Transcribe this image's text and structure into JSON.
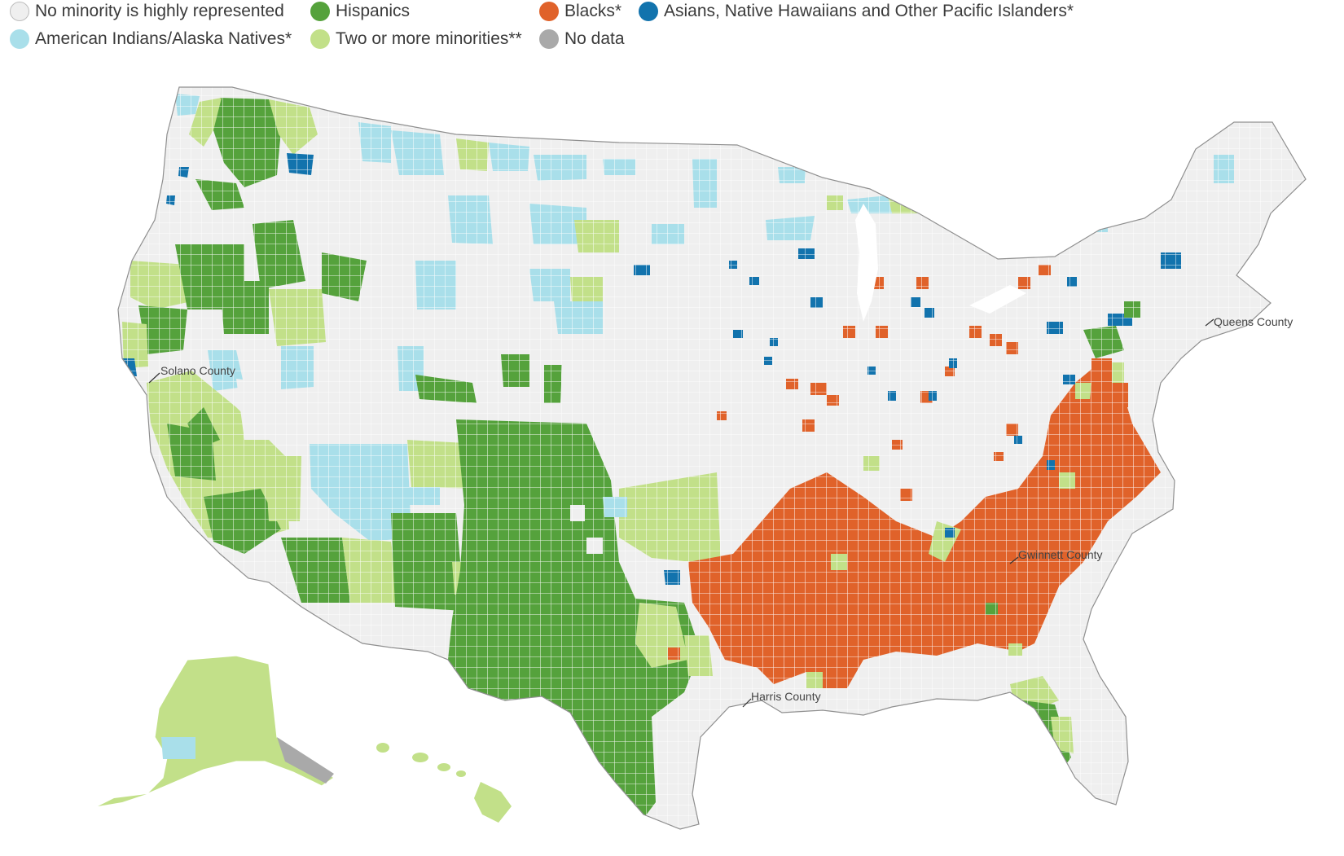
{
  "colors": {
    "none": "#efefef",
    "hispanic": "#55a23c",
    "black": "#e0622a",
    "asian": "#1273ad",
    "native": "#a9dfea",
    "multi": "#c2e089",
    "nodata": "#a9a9a9",
    "border": "#ffffff",
    "outline": "#8f8f8f"
  },
  "legend": [
    {
      "key": "none",
      "label": "No minority is highly represented"
    },
    {
      "key": "hispanic",
      "label": "Hispanics"
    },
    {
      "key": "black",
      "label": "Blacks*"
    },
    {
      "key": "asian",
      "label": "Asians, Native  Hawaiians and Other Pacific Islanders*"
    },
    {
      "key": "native",
      "label": "American Indians/Alaska Natives*"
    },
    {
      "key": "multi",
      "label": "Two or more minorities**"
    },
    {
      "key": "nodata",
      "label": "No data"
    }
  ],
  "map": {
    "labels": {
      "solano": "Solano County",
      "queens": "Queens County",
      "gwinnett": "Gwinnett County",
      "harris": "Harris County"
    }
  }
}
